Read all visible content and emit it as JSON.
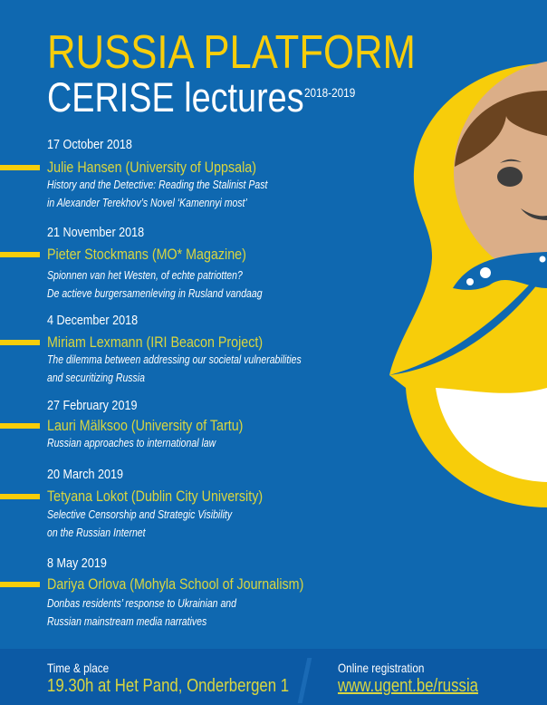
{
  "header": {
    "title": "RUSSIA PLATFORM",
    "subtitle": "CERISE lectures",
    "years": "2018-2019"
  },
  "events": [
    {
      "date": "17 October 2018",
      "speaker": "Julie Hansen (University of Uppsala)",
      "desc": [
        "History and the Detective: Reading the Stalinist Past",
        "in Alexander Terekhov’s Novel ‘Kamennyi most’"
      ]
    },
    {
      "date": "21 November 2018",
      "speaker": "Pieter Stockmans (MO* Magazine)",
      "desc": [
        "Spionnen van het Westen, of echte patriotten?",
        "De actieve burgersamenleving in Rusland vandaag"
      ]
    },
    {
      "date": "4 December 2018",
      "speaker": "Miriam Lexmann (IRI Beacon Project)",
      "desc": [
        "The dilemma between addressing our societal vulnerabilities",
        "and securitizing Russia"
      ]
    },
    {
      "date": "27 February 2019",
      "speaker": "Lauri Mälksoo (University of Tartu)",
      "desc": [
        "Russian approaches to international law"
      ]
    },
    {
      "date": "20 March 2019",
      "speaker": "Tetyana Lokot (Dublin City University)",
      "desc": [
        "Selective Censorship and Strategic Visibility",
        "on the Russian Internet"
      ]
    },
    {
      "date": "8 May 2019",
      "speaker": "Dariya Orlova (Mohyla School of Journalism)",
      "desc": [
        "Donbas residents’ response to Ukrainian and",
        "Russian mainstream media narratives"
      ]
    }
  ],
  "footer": {
    "time_label": "Time & place",
    "time_value": "19.30h at Het Pand, Onderbergen 1",
    "reg_label": "Online registration",
    "reg_link": "www.ugent.be/russia"
  },
  "colors": {
    "background": "#0f68b0",
    "accent_yellow": "#f7cd0a",
    "speaker_text": "#d9d640"
  }
}
